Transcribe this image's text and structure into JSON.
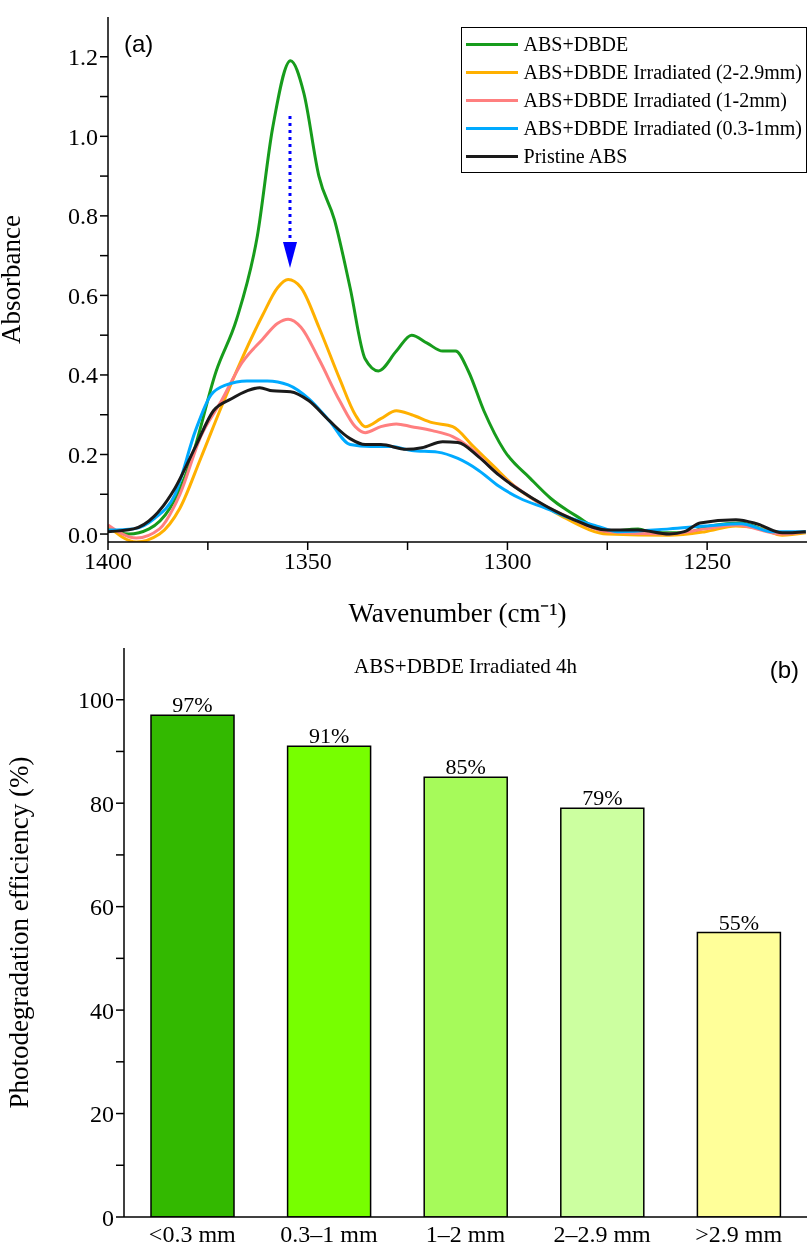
{
  "chart_data": [
    {
      "type": "line",
      "xlabel": "Wavenumber (cm⁻¹)",
      "ylabel": "Absorbance",
      "legend": "top right",
      "annotations": [
        "(a)"
      ],
      "xlim": [
        1400,
        1225
      ],
      "xticks": [
        1400,
        {
          "value": 1375,
          "label": null
        },
        1350,
        {
          "value": 1325,
          "label": null
        },
        1300,
        {
          "value": 1275,
          "label": null
        },
        1250
      ],
      "ylim": [
        -0.02,
        1.3
      ],
      "yticks": [
        {
          "value": 0,
          "label": "0.0"
        },
        {
          "value": 0.1,
          "label": null
        },
        0.2,
        {
          "value": 0.3,
          "label": null
        },
        0.4,
        {
          "value": 0.5,
          "label": null
        },
        0.6,
        {
          "value": 0.7,
          "label": null
        },
        0.8,
        {
          "value": 0.9,
          "label": null
        },
        {
          "value": 1,
          "label": "1.0"
        },
        {
          "value": 1.1,
          "label": null
        },
        1.2
      ],
      "series": [
        {
          "name": "ABS+DBDE",
          "color": "#179c1c",
          "x": [
            1400,
            1394.8,
            1389.7,
            1384.5,
            1379.4,
            1372.9,
            1367.8,
            1362.6,
            1358.8,
            1354.3,
            1351,
            1347.2,
            1343.3,
            1339.4,
            1335.6,
            1332.3,
            1327.8,
            1324,
            1320.1,
            1316.2,
            1313,
            1309.8,
            1305.9,
            1300.8,
            1294.3,
            1289.2,
            1282.7,
            1275,
            1267.3,
            1263.4,
            1255.7,
            1249.2,
            1241.5,
            1236.3,
            1231.2,
            1225.3
          ],
          "values": [
            0.013,
            0,
            0.013,
            0.065,
            0.18,
            0.41,
            0.54,
            0.75,
            1.02,
            1.19,
            1.11,
            0.9,
            0.79,
            0.62,
            0.44,
            0.41,
            0.46,
            0.5,
            0.48,
            0.46,
            0.46,
            0.41,
            0.31,
            0.21,
            0.14,
            0.09,
            0.045,
            0.006,
            0.013,
            0.003,
            0.003,
            0.02,
            0.028,
            0.013,
            0,
            0.006
          ]
        },
        {
          "name": "ABS+DBDE Irradiated (2-2.9mm)",
          "color": "#ffb000",
          "x": [
            1400,
            1392.9,
            1387.1,
            1382,
            1376.8,
            1371.6,
            1366.5,
            1361.3,
            1357.5,
            1354.9,
            1351.7,
            1347.2,
            1342,
            1338.1,
            1335.6,
            1331.7,
            1327.8,
            1324,
            1318.8,
            1313.7,
            1308.5,
            1303.4,
            1298.2,
            1291.8,
            1285.3,
            1275,
            1259.5,
            1250.5,
            1242.8,
            1236.3,
            1231.2,
            1225.3
          ],
          "values": [
            0.02,
            -0.02,
            0,
            0.065,
            0.19,
            0.32,
            0.44,
            0.55,
            0.62,
            0.64,
            0.62,
            0.52,
            0.39,
            0.3,
            0.27,
            0.29,
            0.31,
            0.3,
            0.28,
            0.27,
            0.22,
            0.17,
            0.12,
            0.077,
            0.039,
            0,
            -0.003,
            0.006,
            0.02,
            0.013,
            -0.003,
            0.003
          ]
        },
        {
          "name": "ABS+DBDE Irradiated (1-2mm)",
          "color": "#ff7f7f",
          "x": [
            1400,
            1392.9,
            1387.1,
            1382,
            1376.8,
            1371.6,
            1366.5,
            1361.3,
            1357.5,
            1354.9,
            1351.7,
            1347.2,
            1342,
            1338.1,
            1335.6,
            1331.7,
            1327.8,
            1324,
            1318.8,
            1313.7,
            1308.5,
            1303.4,
            1298.2,
            1291.8,
            1285.3,
            1275,
            1259.5,
            1250.5,
            1242.8,
            1231.2,
            1225.3
          ],
          "values": [
            0.023,
            -0.01,
            0.013,
            0.1,
            0.245,
            0.335,
            0.43,
            0.49,
            0.53,
            0.54,
            0.52,
            0.44,
            0.335,
            0.27,
            0.255,
            0.27,
            0.277,
            0.27,
            0.26,
            0.245,
            0.21,
            0.16,
            0.12,
            0.077,
            0.045,
            0.006,
            0,
            0.013,
            0.023,
            0,
            0.006
          ]
        },
        {
          "name": "ABS+DBDE Irradiated (0.3-1mm)",
          "color": "#00aaff",
          "x": [
            1400,
            1393.6,
            1388.4,
            1383.2,
            1378.1,
            1374.2,
            1370.4,
            1365.2,
            1360.1,
            1354.9,
            1349.7,
            1344.6,
            1339.4,
            1334.3,
            1329.1,
            1324,
            1317.5,
            1312.4,
            1307.2,
            1302.1,
            1296.9,
            1290.5,
            1284,
            1277.6,
            1272.4,
            1259.5,
            1250.5,
            1241.5,
            1233.8,
            1225.3
          ],
          "values": [
            0.01,
            0.013,
            0.039,
            0.1,
            0.26,
            0.35,
            0.375,
            0.385,
            0.385,
            0.375,
            0.34,
            0.285,
            0.225,
            0.22,
            0.22,
            0.21,
            0.206,
            0.19,
            0.16,
            0.12,
            0.09,
            0.065,
            0.039,
            0.02,
            0.006,
            0.013,
            0.02,
            0.026,
            0.006,
            0.006
          ]
        },
        {
          "name": "Pristine ABS",
          "color": "#1a1a1a",
          "x": [
            1400,
            1393.6,
            1388.4,
            1383.2,
            1378.1,
            1373.6,
            1369.1,
            1365.2,
            1362,
            1358.8,
            1354.3,
            1349.7,
            1344.6,
            1339.4,
            1335.6,
            1331.7,
            1325.3,
            1321.4,
            1316.2,
            1312.4,
            1307.2,
            1302.1,
            1296.9,
            1290.5,
            1284,
            1275,
            1267.3,
            1259.5,
            1255.7,
            1251.8,
            1242.8,
            1237.6,
            1231.2,
            1225.3
          ],
          "values": [
            0.006,
            0.013,
            0.045,
            0.116,
            0.22,
            0.31,
            0.34,
            0.36,
            0.368,
            0.36,
            0.358,
            0.335,
            0.285,
            0.24,
            0.225,
            0.225,
            0.213,
            0.217,
            0.232,
            0.23,
            0.194,
            0.148,
            0.11,
            0.071,
            0.039,
            0.01,
            0.01,
            0,
            0.006,
            0.028,
            0.036,
            0.026,
            0.003,
            0.006
          ]
        }
      ]
    },
    {
      "type": "bar",
      "title": "ABS+DBDE Irradiated 4h",
      "ylabel": "Photodegradation efficiency (%)",
      "annotations": [
        "(b)"
      ],
      "categories": [
        "<0.3 mm",
        "0.3–1 mm",
        "1–2 mm",
        "2–2.9 mm",
        ">2.9 mm"
      ],
      "values": [
        97,
        91,
        85,
        79,
        55
      ],
      "colors": [
        "#33b900",
        "#77ff00",
        "#a6fa5a",
        "#ccffa0",
        "#ffff99"
      ],
      "value_labels": [
        "97%",
        "91%",
        "85%",
        "79%",
        "55%"
      ],
      "ylim": [
        0,
        110
      ],
      "yticks": [
        0,
        {
          "value": 10,
          "label": null
        },
        20,
        {
          "value": 30,
          "label": null
        },
        40,
        {
          "value": 50,
          "label": null
        },
        60,
        {
          "value": 70,
          "label": null
        },
        80,
        {
          "value": 90,
          "label": null
        },
        100
      ]
    }
  ]
}
